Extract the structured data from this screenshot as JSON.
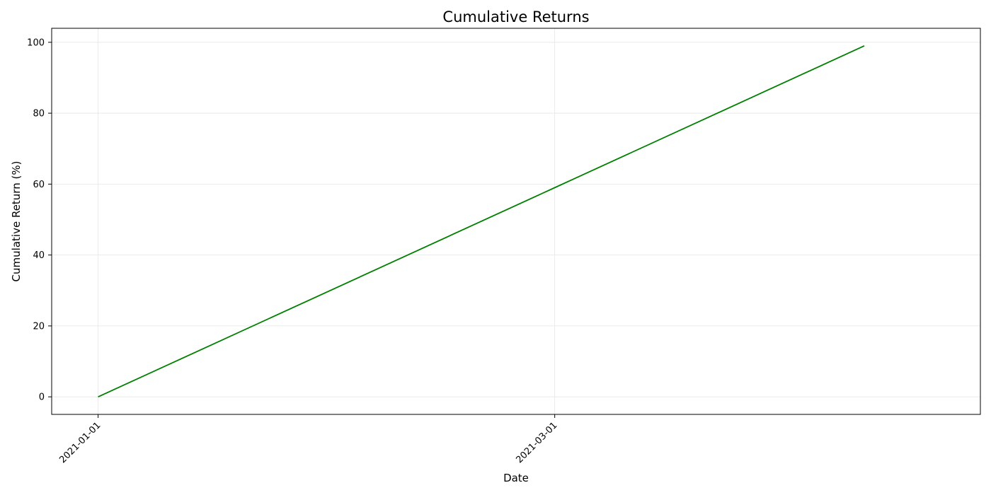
{
  "chart_data": {
    "type": "line",
    "title": "Cumulative Returns",
    "xlabel": "Date",
    "ylabel": "Cumulative Return (%)",
    "x_ticks": [
      "2021-01-01",
      "2021-03-01"
    ],
    "y_ticks": [
      0,
      20,
      40,
      60,
      80,
      100
    ],
    "xlim": [
      "2020-12-26",
      "2021-04-25"
    ],
    "ylim": [
      -4.95,
      103.95
    ],
    "grid": true,
    "series": [
      {
        "color": "#008000",
        "points": [
          {
            "x": "2021-01-01",
            "y": 0
          },
          {
            "x": "2021-03-01",
            "y": 59
          },
          {
            "x": "2021-04-10",
            "y": 99
          }
        ]
      }
    ]
  }
}
